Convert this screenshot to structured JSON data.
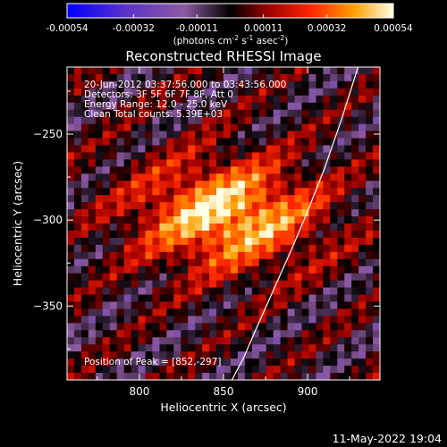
{
  "chart_data": {
    "type": "heatmap",
    "title": "Reconstructed RHESSI Image",
    "xlabel": "Heliocentric X (arcsec)",
    "ylabel": "Heliocentric Y (arcsec)",
    "xlim": [
      757,
      943
    ],
    "ylim": [
      -393,
      -211
    ],
    "x_ticks": [
      800,
      850,
      900
    ],
    "y_ticks": [
      -250,
      -300,
      -350
    ],
    "colorbar": {
      "ticks": [
        "-0.00054",
        "-0.00032",
        "-0.00011",
        "0.00011",
        "0.00032",
        "0.00054"
      ],
      "range": [
        -0.00054,
        0.00054
      ],
      "units_label": "(photons cm",
      "units_sup1": "-2",
      "units_mid1": " s",
      "units_sup2": "-1",
      "units_mid2": " asec",
      "units_sup3": "-2",
      "units_end": ")"
    },
    "annotations": [
      "20-Jun-2012 03:37:56.000 to 03:43:56.000",
      "Detectors: 3F 5F 6F 7F 8F, Att 0",
      "Energy Range: 12.0 - 25.0 keV",
      "Clean     Total counts: 5.39E+03"
    ],
    "peak_label": "Position of Peak = [852,-297]",
    "peak": [
      852,
      -297
    ],
    "limb_points": [
      [
        855,
        -393
      ],
      [
        862,
        -380
      ],
      [
        870,
        -362
      ],
      [
        880,
        -340
      ],
      [
        890,
        -318
      ],
      [
        900,
        -295
      ],
      [
        910,
        -270
      ],
      [
        920,
        -242
      ],
      [
        930,
        -211
      ]
    ]
  },
  "footer": {
    "date": "11-May-2022 19:04"
  }
}
